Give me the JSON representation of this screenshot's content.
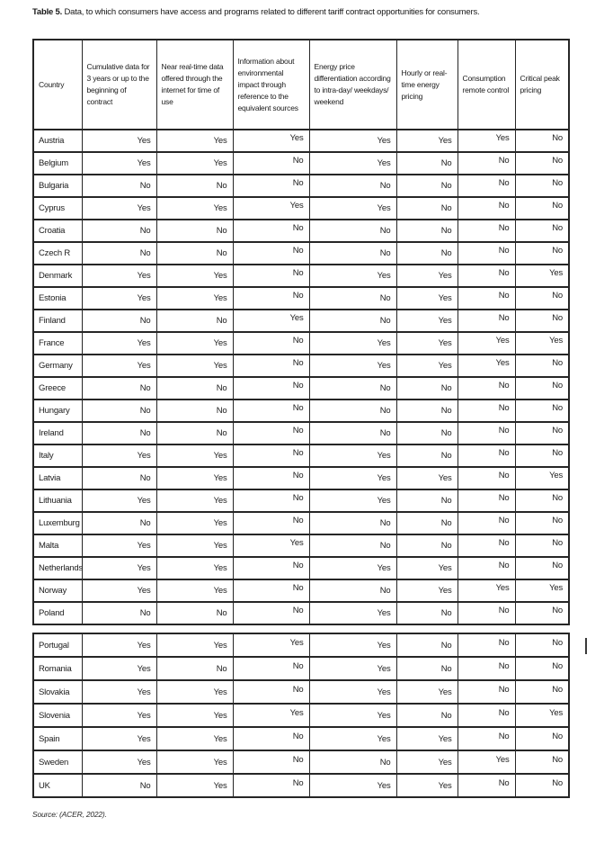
{
  "page": {
    "title_bold": "Table 5.",
    "title_rest": " Data, to which consumers have access and programs related to different tariff contract opportunities for consumers.",
    "source": "Source: (ACER, 2022)."
  },
  "table": {
    "columns": [
      "Country",
      "Cumulative data for 3 years or up to the beginning of contract",
      "Near real-time data offered through the internet for time of use",
      "Information about environmental impact through reference to the equivalent sources",
      "Energy price differentiation according to intra-day/ weekdays/ weekend",
      "Hourly or real-time energy pricing",
      "Consumption remote control",
      "Critical peak pricing"
    ],
    "rows_part1": [
      {
        "country": "Austria",
        "values": [
          "Yes",
          "Yes",
          "Yes",
          "Yes",
          "Yes",
          "Yes",
          "No"
        ]
      },
      {
        "country": "Belgium",
        "values": [
          "Yes",
          "Yes",
          "No",
          "Yes",
          "No",
          "No",
          "No"
        ]
      },
      {
        "country": "Bulgaria",
        "values": [
          "No",
          "No",
          "No",
          "No",
          "No",
          "No",
          "No"
        ]
      },
      {
        "country": "Cyprus",
        "values": [
          "Yes",
          "Yes",
          "Yes",
          "Yes",
          "No",
          "No",
          "No"
        ]
      },
      {
        "country": "Croatia",
        "values": [
          "No",
          "No",
          "No",
          "No",
          "No",
          "No",
          "No"
        ]
      },
      {
        "country": "Czech R",
        "values": [
          "No",
          "No",
          "No",
          "No",
          "No",
          "No",
          "No"
        ]
      },
      {
        "country": "Denmark",
        "values": [
          "Yes",
          "Yes",
          "No",
          "Yes",
          "Yes",
          "No",
          "Yes"
        ]
      },
      {
        "country": "Estonia",
        "values": [
          "Yes",
          "Yes",
          "No",
          "No",
          "Yes",
          "No",
          "No"
        ]
      },
      {
        "country": "Finland",
        "values": [
          "No",
          "No",
          "Yes",
          "No",
          "Yes",
          "No",
          "No"
        ]
      },
      {
        "country": "France",
        "values": [
          "Yes",
          "Yes",
          "No",
          "Yes",
          "Yes",
          "Yes",
          "Yes"
        ]
      },
      {
        "country": "Germany",
        "values": [
          "Yes",
          "Yes",
          "No",
          "Yes",
          "Yes",
          "Yes",
          "No"
        ]
      },
      {
        "country": "Greece",
        "values": [
          "No",
          "No",
          "No",
          "No",
          "No",
          "No",
          "No"
        ]
      },
      {
        "country": "Hungary",
        "values": [
          "No",
          "No",
          "No",
          "No",
          "No",
          "No",
          "No"
        ]
      },
      {
        "country": "Ireland",
        "values": [
          "No",
          "No",
          "No",
          "No",
          "No",
          "No",
          "No"
        ]
      },
      {
        "country": "Italy",
        "values": [
          "Yes",
          "Yes",
          "No",
          "Yes",
          "No",
          "No",
          "No"
        ]
      },
      {
        "country": "Latvia",
        "values": [
          "No",
          "Yes",
          "No",
          "Yes",
          "Yes",
          "No",
          "Yes"
        ]
      },
      {
        "country": "Lithuania",
        "values": [
          "Yes",
          "Yes",
          "No",
          "Yes",
          "No",
          "No",
          "No"
        ]
      },
      {
        "country": "Luxemburg",
        "values": [
          "No",
          "Yes",
          "No",
          "No",
          "No",
          "No",
          "No"
        ]
      },
      {
        "country": "Malta",
        "values": [
          "Yes",
          "Yes",
          "Yes",
          "No",
          "No",
          "No",
          "No"
        ]
      },
      {
        "country": "Netherlands",
        "values": [
          "Yes",
          "Yes",
          "No",
          "Yes",
          "Yes",
          "No",
          "No"
        ]
      },
      {
        "country": "Norway",
        "values": [
          "Yes",
          "Yes",
          "No",
          "No",
          "Yes",
          "Yes",
          "Yes"
        ]
      },
      {
        "country": "Poland",
        "values": [
          "No",
          "No",
          "No",
          "Yes",
          "No",
          "No",
          "No"
        ]
      }
    ],
    "rows_part2": [
      {
        "country": "Portugal",
        "values": [
          "Yes",
          "Yes",
          "Yes",
          "Yes",
          "No",
          "No",
          "No"
        ]
      },
      {
        "country": "Romania",
        "values": [
          "Yes",
          "No",
          "No",
          "Yes",
          "No",
          "No",
          "No"
        ]
      },
      {
        "country": "Slovakia",
        "values": [
          "Yes",
          "Yes",
          "No",
          "Yes",
          "Yes",
          "No",
          "No"
        ]
      },
      {
        "country": "Slovenia",
        "values": [
          "Yes",
          "Yes",
          "Yes",
          "Yes",
          "No",
          "No",
          "Yes"
        ]
      },
      {
        "country": "Spain",
        "values": [
          "Yes",
          "Yes",
          "No",
          "Yes",
          "Yes",
          "No",
          "No"
        ]
      },
      {
        "country": "Sweden",
        "values": [
          "Yes",
          "Yes",
          "No",
          "No",
          "Yes",
          "Yes",
          "No"
        ]
      },
      {
        "country": "UK",
        "values": [
          "No",
          "Yes",
          "No",
          "Yes",
          "Yes",
          "No",
          "No"
        ]
      }
    ]
  }
}
